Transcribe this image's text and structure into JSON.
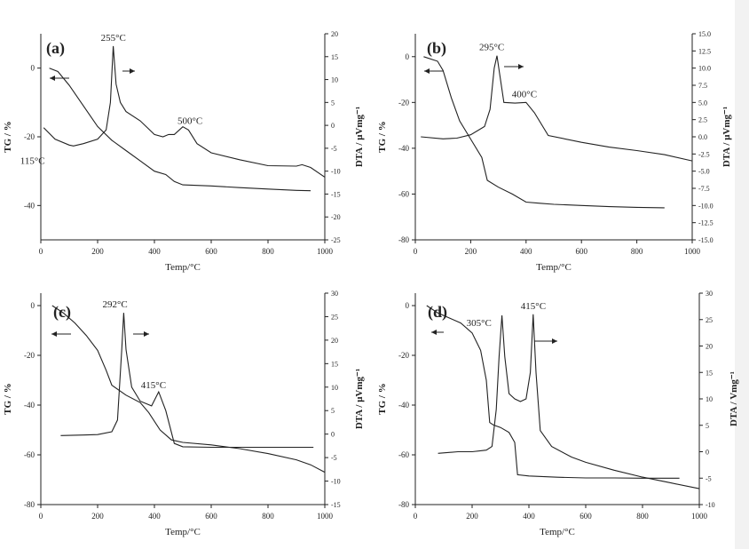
{
  "chart_data": [
    {
      "type": "line",
      "panel_label": "(a)",
      "xlabel": "Temp/°C",
      "ylabel": "TG / %",
      "y2label": "DTA / μVmg⁻¹",
      "xlim": [
        0,
        1000
      ],
      "ylim": [
        -50,
        10
      ],
      "y2lim": [
        -25,
        20
      ],
      "xticks": [
        0,
        200,
        400,
        600,
        800,
        1000
      ],
      "yticks": [
        -40,
        -20,
        0
      ],
      "y2ticks": [
        -25,
        -20,
        -15,
        -10,
        -5,
        0,
        5,
        10,
        15,
        20
      ],
      "y2ticklabels": [
        "-25",
        "-20",
        "-15",
        "-10",
        "-5",
        "0",
        "5",
        "10",
        "15",
        "20"
      ],
      "series": [
        {
          "axis": "left",
          "x": [
            30,
            60,
            100,
            150,
            200,
            250,
            300,
            350,
            400,
            440,
            470,
            500,
            600,
            700,
            800,
            900,
            950
          ],
          "y": [
            0,
            -1,
            -5,
            -11,
            -17,
            -21,
            -24,
            -27,
            -30,
            -31,
            -33,
            -34,
            -34.3,
            -34.8,
            -35.2,
            -35.6,
            -35.7
          ]
        },
        {
          "axis": "right",
          "x": [
            10,
            50,
            100,
            115,
            150,
            200,
            230,
            245,
            255,
            265,
            280,
            300,
            350,
            400,
            430,
            450,
            470,
            500,
            520,
            550,
            600,
            700,
            800,
            900,
            920,
            950,
            1000
          ],
          "y": [
            -0.5,
            -3,
            -4.3,
            -4.5,
            -4,
            -3,
            -1,
            5,
            17.3,
            9,
            5,
            3,
            1,
            -2,
            -2.5,
            -2,
            -2,
            -0.3,
            -1,
            -4,
            -6,
            -7.5,
            -8.8,
            -8.9,
            -8.6,
            -9.2,
            -11.3
          ]
        }
      ],
      "annotations": [
        {
          "text": "255°C",
          "x": 255,
          "y": 17.3,
          "axis": "right"
        },
        {
          "text": "500°C",
          "x": 500,
          "y": -0.3,
          "axis": "right"
        },
        {
          "text": "115°C",
          "x": 115,
          "y": -4.5,
          "axis": "right"
        }
      ]
    },
    {
      "type": "line",
      "panel_label": "(b)",
      "xlabel": "Temp/°C",
      "ylabel": "TG / %",
      "y2label": "DTA / μVmg⁻¹",
      "xlim": [
        0,
        1000
      ],
      "ylim": [
        -80,
        10
      ],
      "y2lim": [
        -15,
        15
      ],
      "xticks": [
        0,
        200,
        400,
        600,
        800,
        1000
      ],
      "yticks": [
        -80,
        -60,
        -40,
        -20,
        0
      ],
      "y2ticks": [
        -15,
        -12.5,
        -10,
        -7.5,
        -5,
        -2.5,
        0,
        2.5,
        5,
        7.5,
        10,
        12.5,
        15
      ],
      "y2ticklabels": [
        "-15.0",
        "-12.5",
        "-10.0",
        "-7.5",
        "-5.0",
        "-2.5",
        "0.0",
        "2.5",
        "5.0",
        "7.5",
        "10.0",
        "12.5",
        "15.0"
      ],
      "series": [
        {
          "axis": "left",
          "x": [
            30,
            80,
            100,
            130,
            160,
            200,
            240,
            260,
            300,
            350,
            400,
            450,
            500,
            600,
            700,
            800,
            900
          ],
          "y": [
            0,
            -2,
            -6,
            -18,
            -28,
            -36,
            -44,
            -54,
            -57,
            -60,
            -63.5,
            -64,
            -64.5,
            -65,
            -65.5,
            -65.8,
            -66
          ]
        },
        {
          "axis": "right",
          "x": [
            20,
            100,
            150,
            200,
            250,
            270,
            285,
            295,
            305,
            320,
            360,
            400,
            430,
            480,
            600,
            700,
            800,
            900,
            1000
          ],
          "y": [
            0,
            -0.3,
            -0.2,
            0.3,
            1.5,
            4,
            10,
            11.8,
            9,
            5,
            4.9,
            5,
            3.5,
            0.2,
            -0.8,
            -1.5,
            -2,
            -2.6,
            -3.5
          ]
        }
      ],
      "annotations": [
        {
          "text": "295°C",
          "x": 295,
          "y": 11.8,
          "axis": "right"
        },
        {
          "text": "400°C",
          "x": 400,
          "y": 5,
          "axis": "right"
        }
      ]
    },
    {
      "type": "line",
      "panel_label": "(c)",
      "xlabel": "Temp/°C",
      "ylabel": "TG / %",
      "y2label": "DTA / μVmg⁻¹",
      "xlim": [
        0,
        1000
      ],
      "ylim": [
        -80,
        5
      ],
      "y2lim": [
        -15,
        30
      ],
      "xticks": [
        0,
        200,
        400,
        600,
        800,
        1000
      ],
      "yticks": [
        -80,
        -60,
        -40,
        -20,
        0
      ],
      "y2ticks": [
        -15,
        -10,
        -5,
        0,
        5,
        10,
        15,
        20,
        25,
        30
      ],
      "y2ticklabels": [
        "-15",
        "-10",
        "-5",
        "0",
        "5",
        "10",
        "15",
        "20",
        "25",
        "30"
      ],
      "series": [
        {
          "axis": "left",
          "x": [
            40,
            80,
            120,
            160,
            200,
            230,
            250,
            300,
            350,
            380,
            420,
            460,
            500,
            600,
            700,
            800,
            900,
            950,
            1000
          ],
          "y": [
            0,
            -3,
            -7,
            -12,
            -18,
            -26,
            -32,
            -36,
            -39,
            -43,
            -50,
            -54,
            -55,
            -56,
            -57.5,
            -59.5,
            -62,
            -64,
            -67
          ]
        },
        {
          "axis": "right",
          "x": [
            70,
            150,
            200,
            250,
            270,
            285,
            292,
            300,
            320,
            350,
            390,
            415,
            440,
            470,
            500,
            600,
            700,
            800,
            900,
            960
          ],
          "y": [
            -0.3,
            -0.2,
            -0.1,
            0.5,
            3,
            18,
            25.8,
            18,
            10,
            7,
            6,
            9,
            5,
            -2,
            -2.7,
            -2.8,
            -2.8,
            -2.8,
            -2.8,
            -2.8
          ]
        }
      ],
      "annotations": [
        {
          "text": "292°C",
          "x": 292,
          "y": 25.8,
          "axis": "right"
        },
        {
          "text": "415°C",
          "x": 415,
          "y": 9,
          "axis": "right"
        }
      ]
    },
    {
      "type": "line",
      "panel_label": "(d)",
      "xlabel": "Temp/°C",
      "ylabel": "TG / %",
      "y2label": "DTA / Vmg⁻¹",
      "xlim": [
        0,
        1000
      ],
      "ylim": [
        -80,
        5
      ],
      "y2lim": [
        -10,
        30
      ],
      "xticks": [
        0,
        200,
        400,
        600,
        800,
        1000
      ],
      "yticks": [
        -80,
        -60,
        -40,
        -20,
        0
      ],
      "y2ticks": [
        -10,
        -5,
        0,
        5,
        10,
        15,
        20,
        25,
        30
      ],
      "y2ticklabels": [
        "-10",
        "-5",
        "0",
        "5",
        "10",
        "15",
        "20",
        "25",
        "30"
      ],
      "series": [
        {
          "axis": "left",
          "x": [
            40,
            80,
            120,
            160,
            200,
            230,
            250,
            262,
            275,
            300,
            330,
            350,
            360,
            400,
            500,
            600,
            700,
            800,
            900,
            930
          ],
          "y": [
            0,
            -3,
            -5,
            -7,
            -11,
            -18,
            -30,
            -47,
            -48,
            -49,
            -51,
            -55,
            -68,
            -68.5,
            -69,
            -69.3,
            -69.3,
            -69.4,
            -69.4,
            -69.4
          ]
        },
        {
          "axis": "right",
          "x": [
            80,
            150,
            200,
            250,
            270,
            285,
            295,
            305,
            315,
            330,
            350,
            370,
            390,
            405,
            415,
            425,
            440,
            480,
            550,
            600,
            700,
            800,
            900,
            1000
          ],
          "y": [
            -0.3,
            0,
            0,
            0.3,
            1,
            8,
            18,
            25.8,
            18,
            11,
            10,
            9.5,
            10,
            15,
            26,
            15,
            4,
            1,
            -1,
            -2,
            -3.5,
            -4.8,
            -5.9,
            -7
          ]
        }
      ],
      "annotations": [
        {
          "text": "305°C",
          "x": 305,
          "y": 25.8,
          "axis": "right"
        },
        {
          "text": "415°C",
          "x": 415,
          "y": 26,
          "axis": "right"
        }
      ]
    }
  ]
}
